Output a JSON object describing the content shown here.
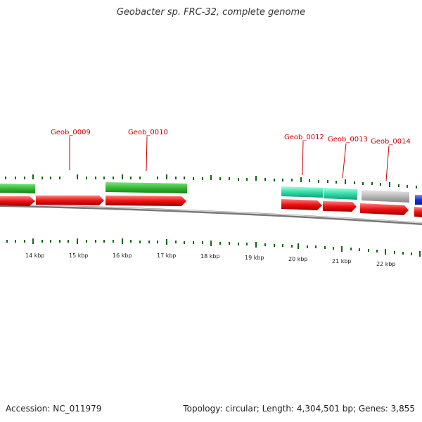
{
  "header": {
    "title": "Geobacter sp. FRC-32, complete genome"
  },
  "footer": {
    "accession": "Accession: NC_011979",
    "stats": "Topology: circular; Length: 4,304,501 bp; Genes: 3,855"
  },
  "colors": {
    "forward_strand_gene": "#33bb33",
    "reverse_strand_gene": "#ee1111",
    "rna_gene": "#33ddaa",
    "pseudo_gene": "#b8b8b8",
    "other_gene": "#1133dd",
    "backbone": "#888888",
    "tick": "#116611",
    "label": "#cc0000"
  },
  "map": {
    "scale_labels": [
      "14 kbp",
      "15 kbp",
      "16 kbp",
      "17 kbp",
      "18 kbp",
      "19 kbp",
      "20 kbp",
      "21 kbp",
      "22 kbp"
    ],
    "gene_labels": [
      "Geob_0009",
      "Geob_0010",
      "Geob_0012",
      "Geob_0013",
      "Geob_0014"
    ]
  }
}
